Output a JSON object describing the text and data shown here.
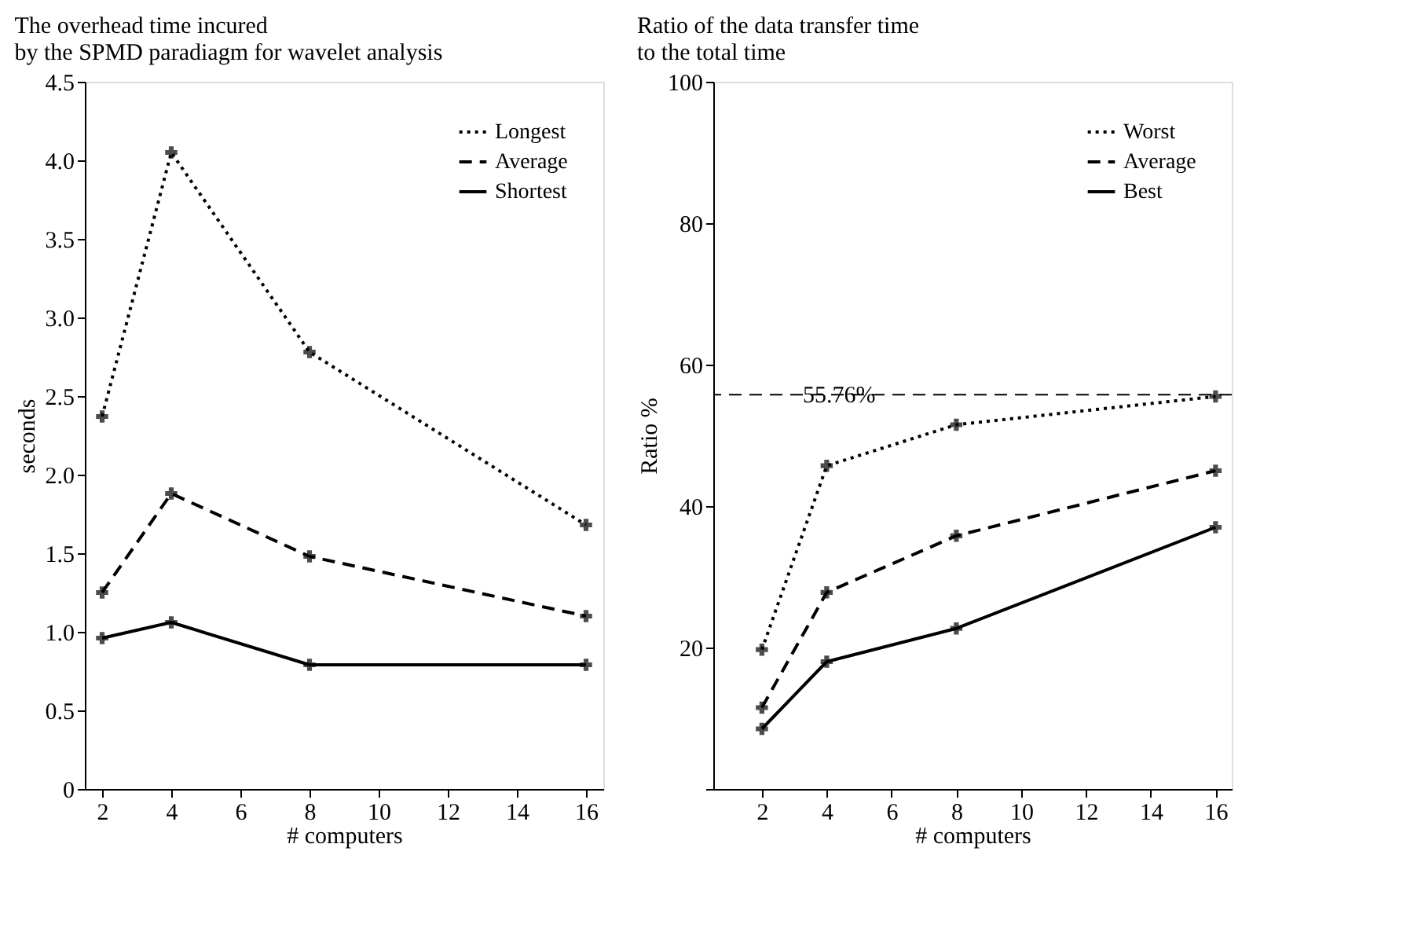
{
  "chart_data": [
    {
      "type": "line",
      "title": [
        "The overhead time incured",
        "by the SPMD paradiagm for wavelet analysis"
      ],
      "xlabel": "# computers",
      "ylabel": "seconds",
      "x": [
        2,
        4,
        8,
        16
      ],
      "xlim": [
        1.5,
        16.5
      ],
      "xticks": [
        2,
        4,
        6,
        8,
        10,
        12,
        14,
        16
      ],
      "ylim": [
        0,
        4.5
      ],
      "yticks": [
        0,
        0.5,
        {
          "value": 1,
          "label": "1.0"
        },
        1.5,
        {
          "value": 2,
          "label": "2.0"
        },
        2.5,
        {
          "value": 3,
          "label": "3.0"
        },
        3.5,
        {
          "value": 4,
          "label": "4.0"
        },
        4.5
      ],
      "grid": false,
      "legend": "top right",
      "marker": "cross",
      "series": [
        {
          "name": "Longest",
          "color": "#000000",
          "line_style": "dotted",
          "values": [
            2.37,
            4.05,
            2.78,
            1.68
          ]
        },
        {
          "name": "Average",
          "color": "#000000",
          "line_style": "dashed",
          "values": [
            1.25,
            1.88,
            1.48,
            1.1
          ]
        },
        {
          "name": "Shortest",
          "color": "#000000",
          "line_style": "solid",
          "values": [
            0.96,
            1.06,
            0.79,
            0.79
          ]
        }
      ]
    },
    {
      "type": "line",
      "title": [
        "Ratio of the data transfer time",
        "to the total time"
      ],
      "xlabel": "# computers",
      "ylabel": "Ratio %",
      "x": [
        2,
        4,
        8,
        16
      ],
      "xlim": [
        0.5,
        16.5
      ],
      "xticks": [
        2,
        4,
        6,
        8,
        10,
        12,
        14,
        16
      ],
      "ylim": [
        0,
        100
      ],
      "yticks": [
        {
          "value": 0,
          "label": null
        },
        20,
        40,
        60,
        80,
        100
      ],
      "grid": false,
      "legend": "top right",
      "marker": "cross",
      "ref_lines": [
        {
          "axis": "y",
          "value": 55.76,
          "label": "55.76%",
          "color": "#000000",
          "line_style": "dashed"
        }
      ],
      "series": [
        {
          "name": "Worst",
          "color": "#000000",
          "line_style": "dotted",
          "values": [
            19.7,
            45.7,
            51.5,
            55.5
          ]
        },
        {
          "name": "Average",
          "color": "#000000",
          "line_style": "dashed",
          "values": [
            11.5,
            27.8,
            35.8,
            45.0
          ]
        },
        {
          "name": "Best",
          "color": "#000000",
          "line_style": "solid",
          "values": [
            8.5,
            18.0,
            22.7,
            37.0
          ]
        }
      ]
    }
  ]
}
